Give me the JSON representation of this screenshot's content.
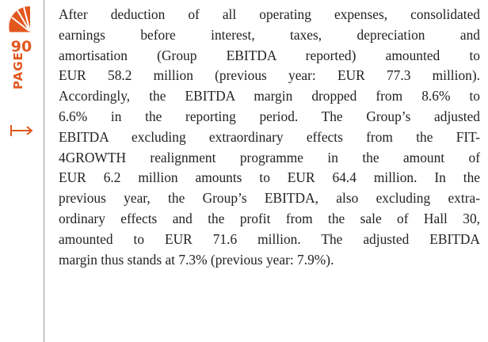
{
  "page_number": "90",
  "page_label": "PAGE",
  "paragraph": {
    "lines": [
      "After deduction of all operating expenses, consolidated",
      "earnings before interest, taxes, depreciation and",
      "amortisation (Group EBITDA reported) amounted to",
      "EUR 58.2 million (previous year: EUR 77.3 million).",
      "Accordingly, the EBITDA margin dropped from 8.6% to",
      "6.6% in the reporting period. The Group’s adjusted",
      "EBITDA excluding extraordinary effects from the FIT-",
      "4GROWTH realignment programme in the amount of",
      "EUR 6.2 million amounts to EUR 64.4 million. In the",
      "previous year, the Group’s EBITDA, also excluding extra-",
      "ordinary effects and the profit from the sale of Hall 30,",
      "amounted to EUR 71.6 million. The adjusted EBITDA",
      "margin thus stands at 7.3% (previous year: 7.9%)."
    ]
  }
}
